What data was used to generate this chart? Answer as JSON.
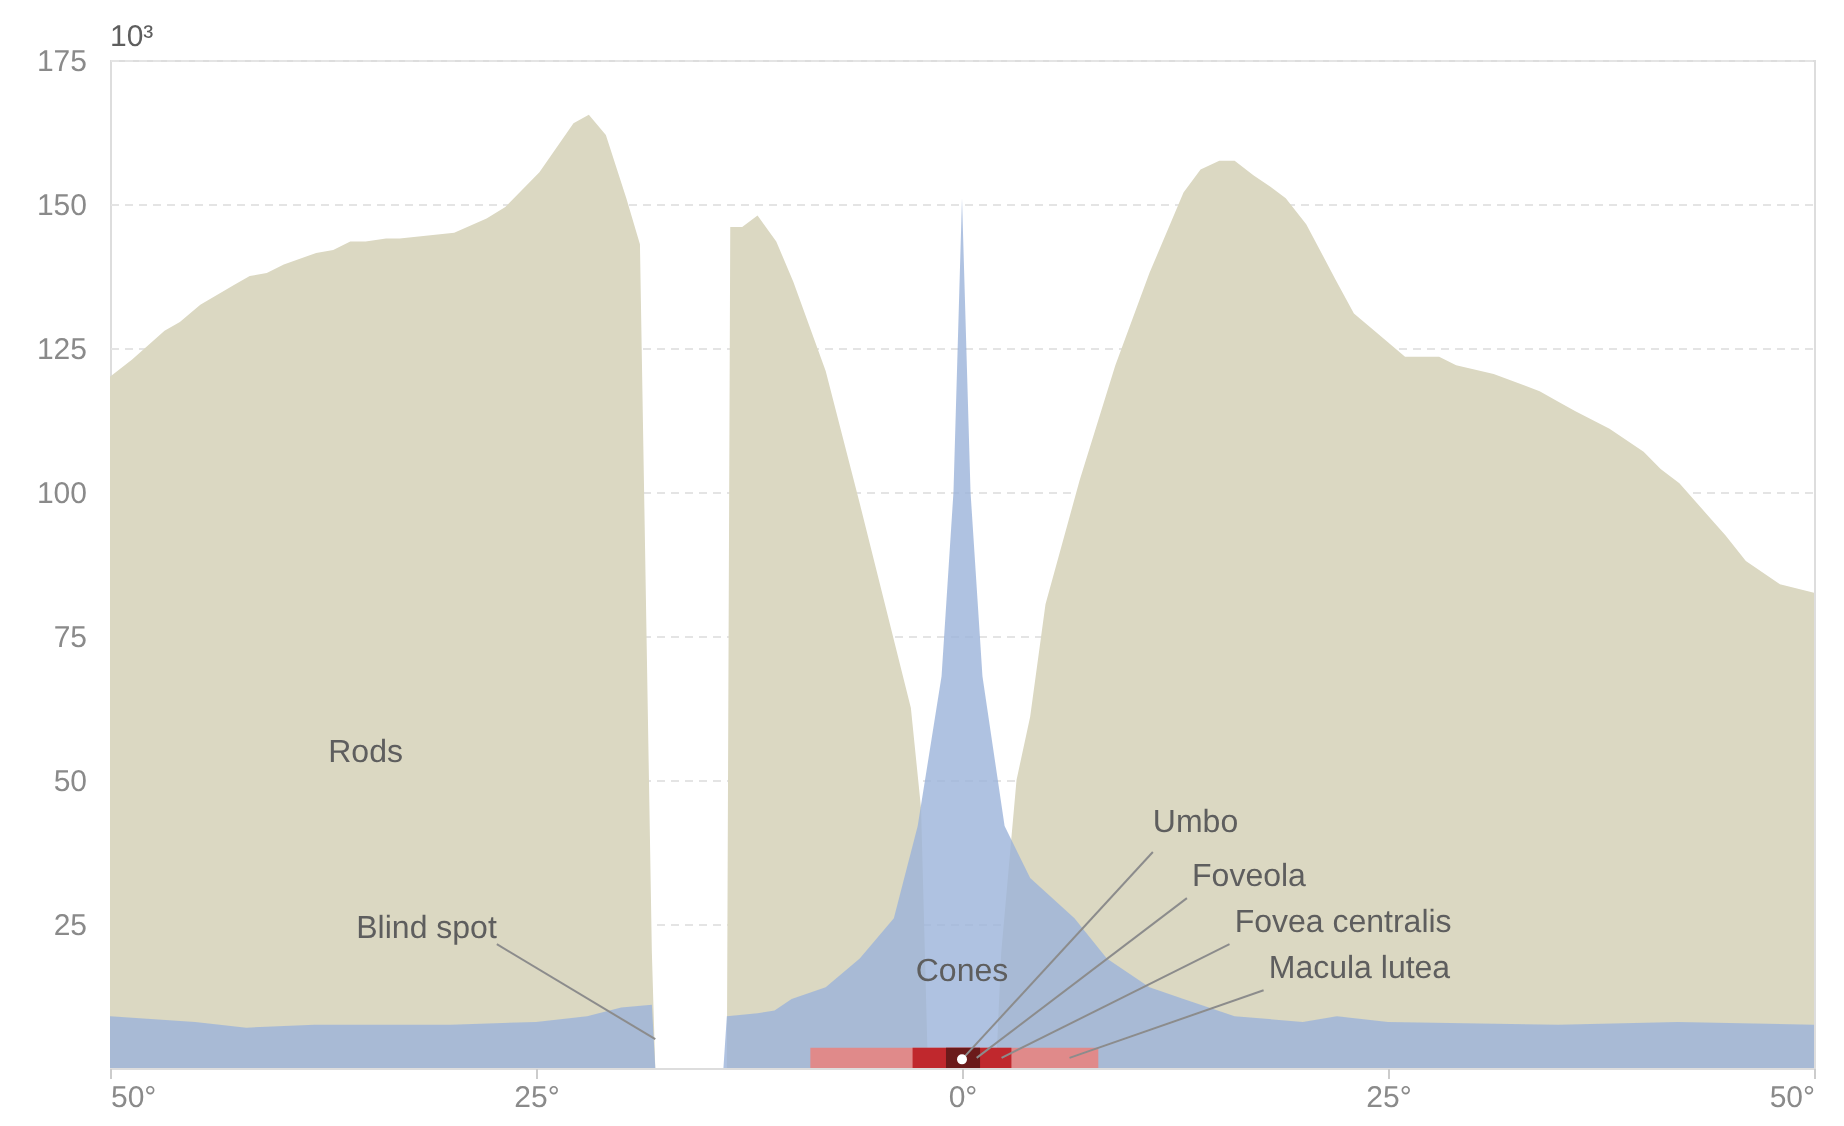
{
  "chart_data": {
    "type": "area",
    "ylabel": "10³",
    "xlim": [
      -50,
      50
    ],
    "ylim": [
      0,
      175
    ],
    "xticks": [
      {
        "value": -50,
        "label": "50°"
      },
      {
        "value": -25,
        "label": "25°"
      },
      {
        "value": 0,
        "label": "0°"
      },
      {
        "value": 25,
        "label": "25°"
      },
      {
        "value": 50,
        "label": "50°"
      }
    ],
    "yticks": [
      25,
      50,
      75,
      100,
      125,
      150,
      175
    ],
    "grid": "y",
    "series": [
      {
        "name": "Rods",
        "color": "#dbd8c2",
        "x": [
          -50,
          -48.7,
          -46.8,
          -45.9,
          -44.7,
          -42.7,
          -41.8,
          -40.8,
          -39.8,
          -37.9,
          -36.9,
          -35.9,
          -35,
          -33.8,
          -33,
          -29.8,
          -27.9,
          -26.8,
          -24.8,
          -22.8,
          -21.9,
          -20.9,
          -19.7,
          -18.9,
          -18.2,
          -18,
          -13.8,
          -13.6,
          -12.9,
          -12,
          -10.9,
          -9.9,
          -8,
          -6,
          -3,
          -2.4,
          -2,
          2,
          2.3,
          3.2,
          4,
          4.9,
          6.9,
          9,
          11,
          13,
          14,
          15.1,
          16,
          17.1,
          18.1,
          19,
          20.2,
          21.9,
          23,
          24.2,
          26,
          28,
          29,
          31.2,
          33.9,
          35.1,
          36,
          38,
          40,
          41,
          42.1,
          43.9,
          44.8,
          46,
          48,
          50
        ],
        "values": [
          120,
          123,
          128,
          129.5,
          132.5,
          136,
          137.5,
          138,
          139.5,
          141.5,
          142,
          143.5,
          143.5,
          144,
          144,
          145,
          147.5,
          149.5,
          155.5,
          164,
          165.5,
          162,
          151,
          143,
          20,
          0,
          0,
          146,
          146,
          148,
          143.5,
          136.5,
          121,
          98,
          62.5,
          45,
          0,
          0,
          20,
          50,
          61,
          80.5,
          102,
          122,
          138,
          152,
          156,
          157.5,
          157.5,
          155,
          153,
          151,
          146.5,
          137,
          131,
          128,
          123.5,
          123.5,
          122,
          120.5,
          117.5,
          115.5,
          114,
          111,
          107,
          104,
          101.5,
          95.5,
          92.5,
          88,
          84,
          82.5
        ]
      },
      {
        "name": "Cones",
        "color": "#9bb3d9",
        "x": [
          -50,
          -45,
          -42,
          -38,
          -30,
          -25,
          -22,
          -20,
          -18.2,
          -18,
          -14,
          -13.8,
          -12,
          -11,
          -10,
          -8,
          -6,
          -4,
          -2.6,
          -1.2,
          -0.5,
          0,
          0.5,
          1.2,
          2.5,
          4,
          6.6,
          8.5,
          11,
          13,
          16,
          20,
          22,
          25,
          35,
          42,
          50
        ],
        "values": [
          9,
          8,
          7,
          7.5,
          7.5,
          8,
          9,
          10.5,
          11,
          0,
          0,
          9,
          9.5,
          10,
          12,
          14,
          19,
          26,
          42,
          68,
          100,
          151,
          100,
          68,
          42,
          33,
          26,
          19,
          14,
          12,
          9,
          8,
          9,
          8,
          7.5,
          8,
          7.5
        ]
      },
      {
        "name": "Macula lutea",
        "color": "#e08a8a",
        "x": [
          -8.9,
          8
        ],
        "values": [
          3.5,
          3.5
        ]
      },
      {
        "name": "Fovea centralis",
        "color": "#c0282d",
        "x": [
          -2.9,
          2.9
        ],
        "values": [
          3.5,
          3.5
        ]
      },
      {
        "name": "Foveola",
        "color": "#6b1a1a",
        "x": [
          -0.94,
          1.06
        ],
        "values": [
          3.5,
          3.5
        ]
      }
    ],
    "annotations": [
      {
        "text": "Umbo",
        "x": 0,
        "y": 1.5
      },
      {
        "text": "Blind spot",
        "x": -18,
        "y": 5
      }
    ]
  }
}
